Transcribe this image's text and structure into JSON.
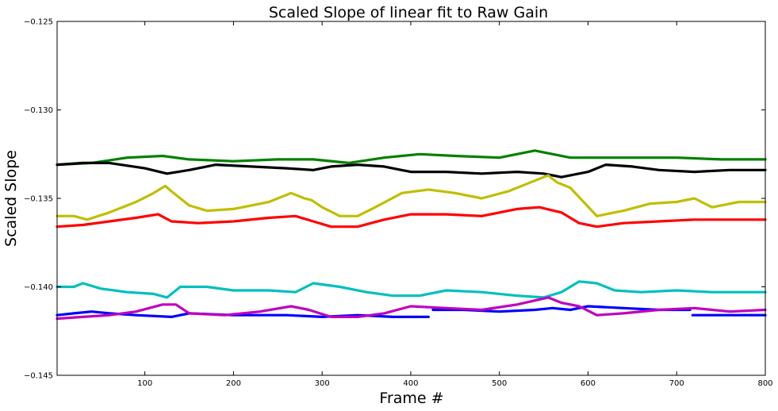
{
  "chart_data": {
    "type": "line",
    "title": "Scaled Slope of linear fit to Raw Gain",
    "xlabel": "Frame #",
    "ylabel": "Scaled Slope",
    "xlim": [
      1,
      800
    ],
    "ylim": [
      -0.145,
      -0.125
    ],
    "x_ticks": [
      100,
      200,
      300,
      400,
      500,
      600,
      700,
      800
    ],
    "x_tick_labels": [
      "100",
      "200",
      "300",
      "400",
      "500",
      "600",
      "700",
      "800"
    ],
    "y_ticks": [
      -0.145,
      -0.14,
      -0.135,
      -0.13,
      -0.125
    ],
    "y_tick_labels": [
      "−0.145",
      "−0.140",
      "−0.135",
      "−0.130",
      "−0.125"
    ],
    "grid": false,
    "series": [
      {
        "color": "#008000",
        "points": [
          [
            1,
            -0.1331
          ],
          [
            40,
            -0.133
          ],
          [
            80,
            -0.1327
          ],
          [
            120,
            -0.1326
          ],
          [
            150,
            -0.1328
          ],
          [
            200,
            -0.1329
          ],
          [
            250,
            -0.1328
          ],
          [
            290,
            -0.1328
          ],
          [
            330,
            -0.133
          ],
          [
            370,
            -0.1327
          ],
          [
            410,
            -0.1325
          ],
          [
            450,
            -0.1326
          ],
          [
            500,
            -0.1327
          ],
          [
            540,
            -0.1323
          ],
          [
            580,
            -0.1327
          ],
          [
            620,
            -0.1327
          ],
          [
            660,
            -0.1327
          ],
          [
            700,
            -0.1327
          ],
          [
            750,
            -0.1328
          ],
          [
            800,
            -0.1328
          ]
        ]
      },
      {
        "color": "#000000",
        "points": [
          [
            1,
            -0.1331
          ],
          [
            30,
            -0.133
          ],
          [
            60,
            -0.133
          ],
          [
            100,
            -0.1333
          ],
          [
            125,
            -0.1336
          ],
          [
            150,
            -0.1334
          ],
          [
            180,
            -0.1331
          ],
          [
            220,
            -0.1332
          ],
          [
            260,
            -0.1333
          ],
          [
            290,
            -0.1334
          ],
          [
            310,
            -0.1332
          ],
          [
            340,
            -0.1331
          ],
          [
            370,
            -0.1332
          ],
          [
            400,
            -0.1335
          ],
          [
            440,
            -0.1335
          ],
          [
            480,
            -0.1336
          ],
          [
            520,
            -0.1335
          ],
          [
            550,
            -0.1336
          ],
          [
            570,
            -0.1338
          ],
          [
            600,
            -0.1335
          ],
          [
            620,
            -0.1331
          ],
          [
            650,
            -0.1332
          ],
          [
            680,
            -0.1334
          ],
          [
            720,
            -0.1335
          ],
          [
            760,
            -0.1334
          ],
          [
            800,
            -0.1334
          ]
        ]
      },
      {
        "color": "#bfbf00",
        "points": [
          [
            1,
            -0.136
          ],
          [
            20,
            -0.136
          ],
          [
            35,
            -0.1362
          ],
          [
            60,
            -0.1358
          ],
          [
            90,
            -0.1352
          ],
          [
            110,
            -0.1347
          ],
          [
            123,
            -0.1343
          ],
          [
            130,
            -0.1346
          ],
          [
            150,
            -0.1354
          ],
          [
            170,
            -0.1357
          ],
          [
            200,
            -0.1356
          ],
          [
            240,
            -0.1352
          ],
          [
            265,
            -0.1347
          ],
          [
            280,
            -0.135
          ],
          [
            288,
            -0.1351
          ],
          [
            300,
            -0.1355
          ],
          [
            320,
            -0.136
          ],
          [
            340,
            -0.136
          ],
          [
            360,
            -0.1355
          ],
          [
            390,
            -0.1347
          ],
          [
            420,
            -0.1345
          ],
          [
            450,
            -0.1347
          ],
          [
            480,
            -0.135
          ],
          [
            510,
            -0.1346
          ],
          [
            540,
            -0.134
          ],
          [
            555,
            -0.1337
          ],
          [
            565,
            -0.1341
          ],
          [
            580,
            -0.1344
          ],
          [
            595,
            -0.1352
          ],
          [
            610,
            -0.136
          ],
          [
            640,
            -0.1357
          ],
          [
            670,
            -0.1353
          ],
          [
            700,
            -0.1352
          ],
          [
            720,
            -0.135
          ],
          [
            740,
            -0.1355
          ],
          [
            770,
            -0.1352
          ],
          [
            800,
            -0.1352
          ]
        ]
      },
      {
        "color": "#ff0000",
        "points": [
          [
            1,
            -0.1366
          ],
          [
            30,
            -0.1365
          ],
          [
            60,
            -0.1363
          ],
          [
            90,
            -0.1361
          ],
          [
            115,
            -0.1359
          ],
          [
            130,
            -0.1363
          ],
          [
            160,
            -0.1364
          ],
          [
            200,
            -0.1363
          ],
          [
            240,
            -0.1361
          ],
          [
            270,
            -0.136
          ],
          [
            290,
            -0.1363
          ],
          [
            310,
            -0.1366
          ],
          [
            340,
            -0.1366
          ],
          [
            370,
            -0.1362
          ],
          [
            400,
            -0.1359
          ],
          [
            440,
            -0.1359
          ],
          [
            480,
            -0.136
          ],
          [
            520,
            -0.1356
          ],
          [
            545,
            -0.1355
          ],
          [
            570,
            -0.1358
          ],
          [
            590,
            -0.1364
          ],
          [
            610,
            -0.1366
          ],
          [
            640,
            -0.1364
          ],
          [
            680,
            -0.1363
          ],
          [
            720,
            -0.1362
          ],
          [
            760,
            -0.1362
          ],
          [
            800,
            -0.1362
          ]
        ]
      },
      {
        "color": "#00bfbf",
        "points": [
          [
            1,
            -0.14
          ],
          [
            20,
            -0.14
          ],
          [
            30,
            -0.1398
          ],
          [
            50,
            -0.1401
          ],
          [
            80,
            -0.1403
          ],
          [
            110,
            -0.1404
          ],
          [
            125,
            -0.1406
          ],
          [
            140,
            -0.14
          ],
          [
            170,
            -0.14
          ],
          [
            200,
            -0.1402
          ],
          [
            240,
            -0.1402
          ],
          [
            270,
            -0.1403
          ],
          [
            290,
            -0.1398
          ],
          [
            320,
            -0.14
          ],
          [
            350,
            -0.1403
          ],
          [
            380,
            -0.1405
          ],
          [
            410,
            -0.1405
          ],
          [
            440,
            -0.1402
          ],
          [
            480,
            -0.1403
          ],
          [
            520,
            -0.1405
          ],
          [
            550,
            -0.1406
          ],
          [
            570,
            -0.1403
          ],
          [
            590,
            -0.1397
          ],
          [
            610,
            -0.1398
          ],
          [
            630,
            -0.1402
          ],
          [
            660,
            -0.1403
          ],
          [
            700,
            -0.1402
          ],
          [
            740,
            -0.1403
          ],
          [
            770,
            -0.1403
          ],
          [
            800,
            -0.1403
          ]
        ]
      },
      {
        "color": "#0000ff",
        "points": [
          [
            1,
            -0.1416
          ],
          [
            20,
            -0.1415
          ],
          [
            40,
            -0.1414
          ],
          [
            60,
            -0.1415
          ],
          [
            90,
            -0.1416
          ],
          [
            130,
            -0.1417
          ],
          [
            150,
            -0.1415
          ],
          [
            200,
            -0.1416
          ],
          [
            260,
            -0.1416
          ],
          [
            300,
            -0.1417
          ],
          [
            340,
            -0.1416
          ],
          [
            380,
            -0.1417
          ],
          [
            420,
            -0.1417
          ],
          null,
          [
            425,
            -0.1413
          ],
          [
            460,
            -0.1413
          ],
          [
            500,
            -0.1414
          ],
          [
            540,
            -0.1413
          ],
          [
            560,
            -0.1412
          ],
          [
            580,
            -0.1413
          ],
          [
            600,
            -0.1411
          ],
          [
            640,
            -0.1412
          ],
          [
            680,
            -0.1413
          ],
          [
            715,
            -0.1413
          ],
          null,
          [
            718,
            -0.1416
          ],
          [
            760,
            -0.1416
          ],
          [
            800,
            -0.1416
          ]
        ]
      },
      {
        "color": "#bf00bf",
        "points": [
          [
            1,
            -0.1418
          ],
          [
            30,
            -0.1417
          ],
          [
            60,
            -0.1416
          ],
          [
            90,
            -0.1414
          ],
          [
            120,
            -0.141
          ],
          [
            135,
            -0.141
          ],
          [
            150,
            -0.1415
          ],
          [
            190,
            -0.1416
          ],
          [
            230,
            -0.1414
          ],
          [
            265,
            -0.1411
          ],
          [
            285,
            -0.1413
          ],
          [
            310,
            -0.1417
          ],
          [
            340,
            -0.1417
          ],
          [
            370,
            -0.1415
          ],
          [
            400,
            -0.1411
          ],
          [
            440,
            -0.1412
          ],
          [
            480,
            -0.1413
          ],
          [
            520,
            -0.141
          ],
          [
            555,
            -0.1406
          ],
          [
            570,
            -0.1409
          ],
          [
            590,
            -0.1411
          ],
          [
            610,
            -0.1416
          ],
          [
            640,
            -0.1415
          ],
          [
            680,
            -0.1413
          ],
          [
            720,
            -0.1412
          ],
          [
            760,
            -0.1414
          ],
          [
            800,
            -0.1413
          ]
        ]
      }
    ]
  }
}
